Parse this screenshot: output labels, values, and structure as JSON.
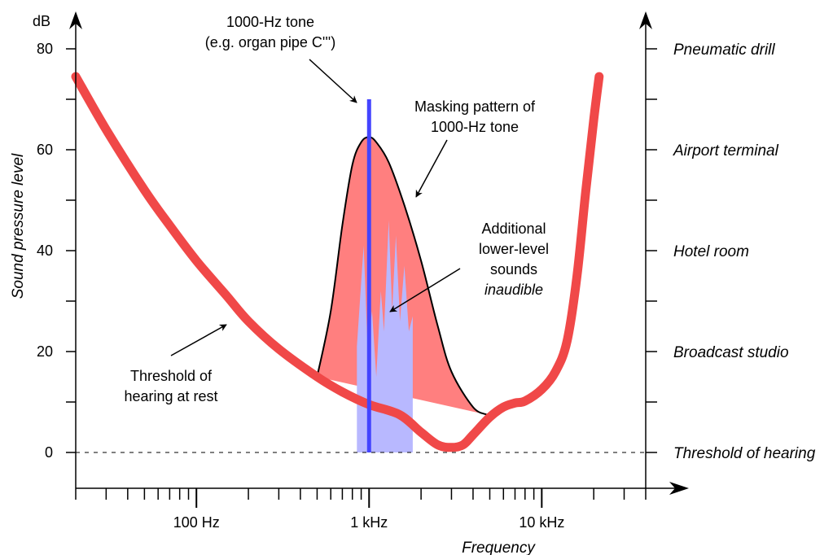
{
  "chart_data": {
    "type": "line",
    "y_unit": "dB",
    "ylabel": "Sound pressure level",
    "xlabel": "Frequency",
    "x_scale": "log",
    "xlim_hz": [
      20,
      40000
    ],
    "ylim_db": [
      -7,
      86
    ],
    "y_ticks": [
      {
        "value": 0,
        "label": "0"
      },
      {
        "value": 20,
        "label": "20"
      },
      {
        "value": 40,
        "label": "40"
      },
      {
        "value": 60,
        "label": "60"
      },
      {
        "value": 80,
        "label": "80"
      }
    ],
    "y_minor_ticks": [
      10,
      30,
      50,
      70
    ],
    "x_ticks": [
      {
        "value": 100,
        "label": "100 Hz"
      },
      {
        "value": 1000,
        "label": "1 kHz"
      },
      {
        "value": 10000,
        "label": "10 kHz"
      }
    ],
    "right_axis_labels": [
      {
        "value": 0,
        "label": "Threshold of hearing"
      },
      {
        "value": 20,
        "label": "Broadcast studio"
      },
      {
        "value": 40,
        "label": "Hotel room"
      },
      {
        "value": 60,
        "label": "Airport terminal"
      },
      {
        "value": 80,
        "label": "Pneumatic drill"
      }
    ],
    "right_axis_minor_ticks": [
      10,
      30,
      50,
      70
    ],
    "threshold_curve": {
      "color": "#f04848",
      "points": [
        [
          20,
          74.5
        ],
        [
          30,
          64
        ],
        [
          50,
          52
        ],
        [
          70,
          45
        ],
        [
          100,
          38
        ],
        [
          150,
          31
        ],
        [
          200,
          26
        ],
        [
          300,
          20.5
        ],
        [
          500,
          15
        ],
        [
          700,
          12
        ],
        [
          1000,
          9.5
        ],
        [
          1500,
          7.5
        ],
        [
          2000,
          4
        ],
        [
          2500,
          1.5
        ],
        [
          3000,
          1
        ],
        [
          3500,
          1.5
        ],
        [
          4000,
          3.5
        ],
        [
          5000,
          7
        ],
        [
          6000,
          9
        ],
        [
          7000,
          9.8
        ],
        [
          8000,
          10.2
        ],
        [
          10000,
          12.5
        ],
        [
          12000,
          16
        ],
        [
          14000,
          22
        ],
        [
          16000,
          35
        ],
        [
          18000,
          52
        ],
        [
          20000,
          66
        ],
        [
          21500,
          74.5
        ]
      ]
    },
    "masking_pattern": {
      "color": "#ff7f7f",
      "points": [
        [
          500,
          15
        ],
        [
          600,
          28
        ],
        [
          700,
          45
        ],
        [
          800,
          57
        ],
        [
          900,
          61.5
        ],
        [
          1000,
          62.5
        ],
        [
          1100,
          61.5
        ],
        [
          1300,
          57.5
        ],
        [
          1600,
          49
        ],
        [
          2000,
          38
        ],
        [
          2500,
          25
        ],
        [
          3000,
          16
        ],
        [
          4000,
          9
        ],
        [
          4800,
          7.5
        ]
      ]
    },
    "inaudible_sounds": {
      "color": "#b8b8ff",
      "points": [
        [
          850,
          0
        ],
        [
          850,
          21
        ],
        [
          930,
          41
        ],
        [
          980,
          21
        ],
        [
          1040,
          28
        ],
        [
          1100,
          15
        ],
        [
          1170,
          32
        ],
        [
          1220,
          24
        ],
        [
          1300,
          46
        ],
        [
          1360,
          28
        ],
        [
          1430,
          43
        ],
        [
          1510,
          26
        ],
        [
          1600,
          37
        ],
        [
          1700,
          24
        ],
        [
          1790,
          27
        ],
        [
          1790,
          0
        ]
      ]
    },
    "tone": {
      "frequency_hz": 1000,
      "level_db": 70,
      "color": "#4444ff"
    },
    "reference_line_db": 0,
    "annotations": {
      "tone_line1": "1000-Hz tone",
      "tone_line2": "(e.g. organ pipe C''')",
      "mask_line1": "Masking pattern of",
      "mask_line2": "1000-Hz tone",
      "add_line1": "Additional",
      "add_line2": "lower-level",
      "add_line3": "sounds",
      "add_line4": "inaudible",
      "thr_line1": "Threshold of",
      "thr_line2": "hearing at rest"
    }
  }
}
